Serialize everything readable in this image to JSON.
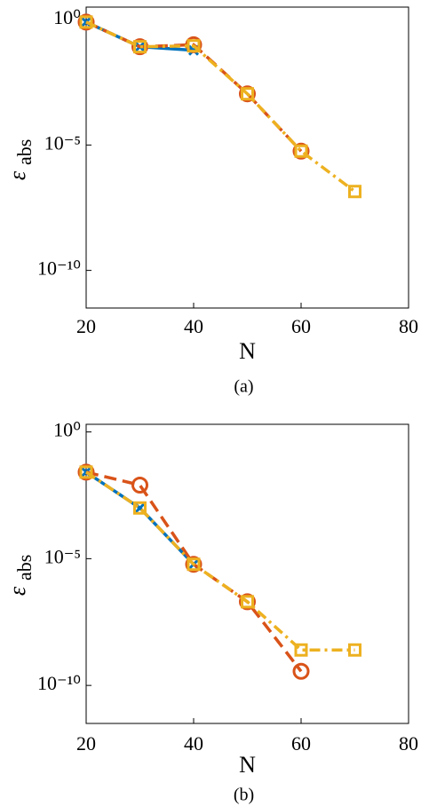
{
  "chart_data": [
    {
      "type": "line",
      "log_y": true,
      "caption": "(a)",
      "xlabel": "N",
      "ylabel_symbol": "ε",
      "ylabel_subscript": "abs",
      "x": [
        20,
        30,
        40,
        50,
        60,
        70
      ],
      "xlim": [
        20,
        80
      ],
      "xticks": [
        20,
        40,
        60,
        80
      ],
      "ylim": [
        3.16e-12,
        3.16
      ],
      "yticks": [
        {
          "value": 1,
          "label": "10⁰"
        },
        {
          "value": 1e-05,
          "label": "10⁻⁵"
        },
        {
          "value": 1e-10,
          "label": "10⁻¹⁰"
        }
      ],
      "series": [
        {
          "color": "#0072BD",
          "linestyle": "solid",
          "marker": "x",
          "values": [
            0.8,
            0.083,
            0.06,
            null,
            null,
            null
          ]
        },
        {
          "color": "#D95319",
          "linestyle": "dashed",
          "marker": "o",
          "values": [
            0.8,
            0.083,
            0.1,
            0.0011,
            5.7e-06,
            null
          ]
        },
        {
          "color": "#EDB120",
          "linestyle": "dashdot",
          "marker": "s",
          "values": [
            0.8,
            0.083,
            0.09,
            0.0011,
            5.7e-06,
            1.4e-07
          ]
        }
      ]
    },
    {
      "type": "line",
      "log_y": true,
      "caption": "(b)",
      "xlabel": "N",
      "ylabel_symbol": "ε",
      "ylabel_subscript": "abs",
      "x": [
        20,
        30,
        40,
        50,
        60,
        70
      ],
      "xlim": [
        20,
        80
      ],
      "xticks": [
        20,
        40,
        60,
        80
      ],
      "ylim": [
        3.16e-12,
        2
      ],
      "yticks": [
        {
          "value": 1,
          "label": "10⁰"
        },
        {
          "value": 1e-05,
          "label": "10⁻⁵"
        },
        {
          "value": 1e-10,
          "label": "10⁻¹⁰"
        }
      ],
      "series": [
        {
          "color": "#0072BD",
          "linestyle": "solid",
          "marker": "x",
          "values": [
            0.026,
            0.001,
            6e-06,
            null,
            null,
            null
          ]
        },
        {
          "color": "#D95319",
          "linestyle": "dashed",
          "marker": "o",
          "values": [
            0.026,
            0.008,
            6e-06,
            2e-07,
            3.6e-10,
            null
          ]
        },
        {
          "color": "#EDB120",
          "linestyle": "dashdot",
          "marker": "s",
          "values": [
            0.026,
            0.001,
            6e-06,
            2e-07,
            2.5e-09,
            2.5e-09
          ]
        }
      ]
    }
  ]
}
